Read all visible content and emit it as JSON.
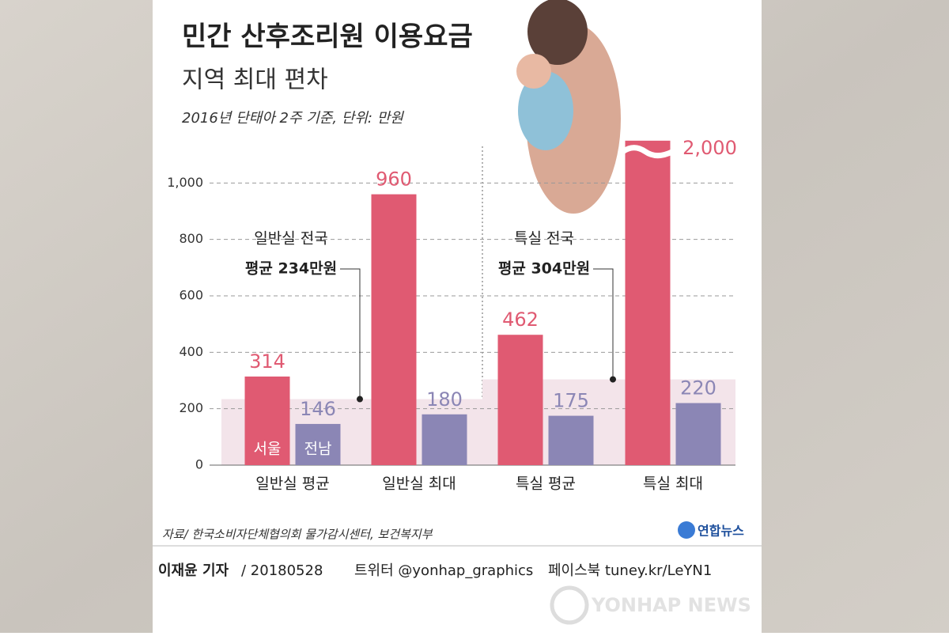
{
  "chart_data": {
    "type": "bar",
    "title": "민간 산후조리원 이용요금",
    "subtitle": "지역 최대 편차",
    "note": "2016년 단태아 2주 기준, 단위: 만원",
    "categories": [
      "일반실 평균",
      "일반실 최대",
      "특실 평균",
      "특실 최대"
    ],
    "series": [
      {
        "name": "서울",
        "color": "#e05a72",
        "values": [
          314,
          960,
          462,
          2000
        ],
        "value_labels": [
          "314",
          "960",
          "462",
          "2,000"
        ]
      },
      {
        "name": "전남",
        "color": "#8b86b5",
        "values": [
          146,
          180,
          175,
          220
        ]
      }
    ],
    "ylim": [
      0,
      2050
    ],
    "ybreak": [
      1100,
      1950
    ],
    "yticks": [
      0,
      200,
      400,
      600,
      800,
      {
        "value": 1000,
        "label": "1,000"
      }
    ],
    "grid": true,
    "reference_bands": [
      {
        "lines": [
          "일반실 전국",
          "평균 234만원"
        ],
        "value": 234
      },
      {
        "lines": [
          "특실 전국",
          "평균 304만원"
        ],
        "value": 304
      }
    ],
    "source": "자료/ 한국소비자단체협의회 물가감시센터, 보건복지부",
    "logo": "연합뉴스",
    "footer": {
      "author": "이재윤 기자",
      "date": "/ 20180528",
      "twitter": "트위터 @yonhap_graphics",
      "facebook": "페이스북 tuney.kr/LeYN1"
    },
    "watermark": "YONHAP NEWS"
  }
}
